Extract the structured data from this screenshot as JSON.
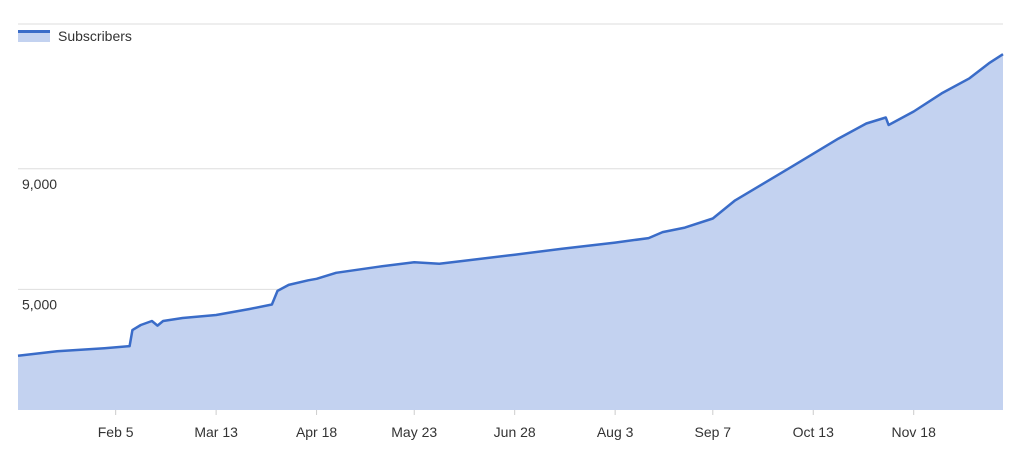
{
  "chart_data": {
    "type": "area",
    "title": "",
    "xlabel": "",
    "ylabel": "",
    "legend": {
      "position": "top-left",
      "entries": [
        "Subscribers"
      ]
    },
    "grid": true,
    "x_ticks": [
      "Feb 5",
      "Mar 13",
      "Apr 18",
      "May 23",
      "Jun 28",
      "Aug 3",
      "Sep 7",
      "Oct 13",
      "Nov 18"
    ],
    "y_ticks": [
      {
        "value": 5000,
        "label": "5,000"
      },
      {
        "value": 9000,
        "label": "9,000"
      }
    ],
    "ylim": [
      1000,
      13800
    ],
    "x_range": [
      "Jan 1",
      "Dec 20"
    ],
    "colors": {
      "line": "#3a6cc8",
      "fill": "#c3d2f0",
      "grid": "#dedede"
    },
    "series": [
      {
        "name": "Subscribers",
        "x": [
          "Jan 1",
          "Jan 15",
          "Feb 1",
          "Feb 10",
          "Feb 11",
          "Feb 14",
          "Feb 18",
          "Feb 20",
          "Feb 22",
          "Mar 1",
          "Mar 13",
          "Mar 25",
          "Apr 2",
          "Apr 4",
          "Apr 8",
          "Apr 15",
          "Apr 18",
          "Apr 25",
          "May 10",
          "May 23",
          "Jun 1",
          "Jun 10",
          "Jun 28",
          "Jul 15",
          "Aug 3",
          "Aug 15",
          "Aug 20",
          "Aug 28",
          "Sep 7",
          "Sep 15",
          "Sep 25",
          "Oct 5",
          "Oct 13",
          "Oct 22",
          "Nov 1",
          "Nov 8",
          "Nov 9",
          "Nov 18",
          "Nov 28",
          "Dec 8",
          "Dec 15",
          "Dec 20"
        ],
        "values": [
          2800,
          2950,
          3050,
          3120,
          3650,
          3820,
          3950,
          3800,
          3950,
          4050,
          4150,
          4350,
          4500,
          4950,
          5150,
          5300,
          5350,
          5550,
          5750,
          5900,
          5850,
          5950,
          6150,
          6350,
          6550,
          6700,
          6900,
          7050,
          7350,
          7950,
          8500,
          9050,
          9500,
          10000,
          10500,
          10700,
          10450,
          10900,
          11500,
          12000,
          12500,
          12800
        ]
      }
    ]
  }
}
